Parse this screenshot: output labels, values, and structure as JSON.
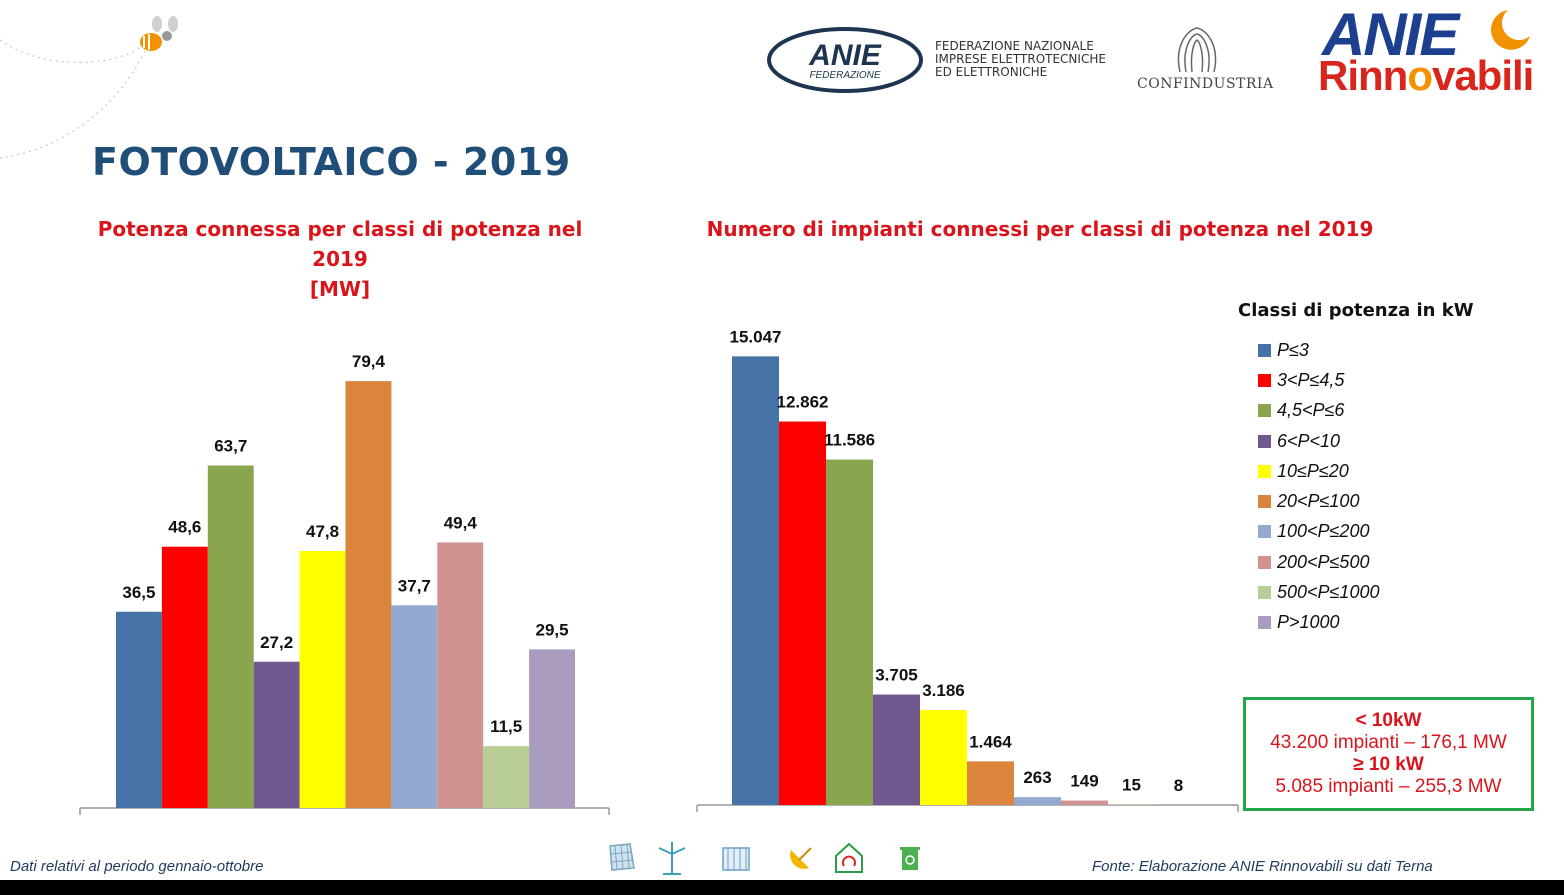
{
  "header": {
    "anie_federazione_logo": "ANIE",
    "anie_federazione_sub": "FEDERAZIONE",
    "anie_federazione_text": [
      "FEDERAZIONE NAZIONALE",
      "IMPRESE ELETTROTECNICHE",
      "ED ELETTRONICHE"
    ],
    "confindustria": "CONFINDUSTRIA",
    "anie_rinnovabili_top": "ANIE",
    "anie_rinnovabili_bottom_a": "Rinn",
    "anie_rinnovabili_bottom_o": "o",
    "anie_rinnovabili_bottom_b": "vabili"
  },
  "page_title": "FOTOVOLTAICO - 2019",
  "legend": {
    "title": "Classi di potenza in kW",
    "items": [
      {
        "label": "P≤3",
        "color": "#4572a7"
      },
      {
        "label": "3<P≤4,5",
        "color": "#ff0000"
      },
      {
        "label": "4,5<P≤6",
        "color": "#89a54e"
      },
      {
        "label": "6<P<10",
        "color": "#71588f"
      },
      {
        "label": "10≤P≤20",
        "color": "#ffff00"
      },
      {
        "label": "20<P≤100",
        "color": "#db843d"
      },
      {
        "label": "100<P≤200",
        "color": "#93a9cf"
      },
      {
        "label": "200<P≤500",
        "color": "#d19392"
      },
      {
        "label": "500<P≤1000",
        "color": "#b9cd96"
      },
      {
        "label": "P>1000",
        "color": "#a99bbd"
      }
    ]
  },
  "chart_data": [
    {
      "type": "bar",
      "title": "Potenza connessa per classi di potenza nel 2019",
      "title_line2": "[MW]",
      "categories": [
        "P≤3",
        "3<P≤4,5",
        "4,5<P≤6",
        "6<P<10",
        "10≤P≤20",
        "20<P≤100",
        "100<P≤200",
        "200<P≤500",
        "500<P≤1000",
        "P>1000"
      ],
      "values": [
        36.5,
        48.6,
        63.7,
        27.2,
        47.8,
        79.4,
        37.7,
        49.4,
        11.5,
        29.5
      ],
      "value_labels": [
        "36,5",
        "48,6",
        "63,7",
        "27,2",
        "47,8",
        "79,4",
        "37,7",
        "49,4",
        "11,5",
        "29,5"
      ],
      "ylim": [
        0,
        85
      ]
    },
    {
      "type": "bar",
      "title": "Numero di impianti connessi per classi di potenza nel 2019",
      "categories": [
        "P≤3",
        "3<P≤4,5",
        "4,5<P≤6",
        "6<P<10",
        "10≤P≤20",
        "20<P≤100",
        "100<P≤200",
        "200<P≤500",
        "500<P≤1000",
        "P>1000"
      ],
      "values": [
        15047,
        12862,
        11586,
        3705,
        3186,
        1464,
        263,
        149,
        15,
        8
      ],
      "value_labels": [
        "15.047",
        "12.862",
        "11.586",
        "3.705",
        "3.186",
        "1.464",
        "263",
        "149",
        "15",
        "8"
      ],
      "ylim": [
        0,
        16200
      ]
    }
  ],
  "summary": {
    "line1": "< 10kW",
    "line2": "43.200 impianti – 176,1 MW",
    "line3": "≥ 10 kW",
    "line4": "5.085 impianti – 255,3 MW"
  },
  "footer": {
    "left": "Dati relativi al periodo gennaio-ottobre",
    "right": "Fonte: Elaborazione ANIE Rinnovabili su dati Terna"
  }
}
